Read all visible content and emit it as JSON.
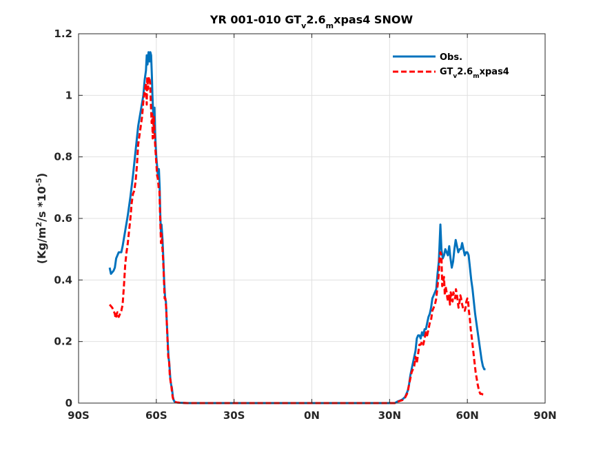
{
  "chart_data": {
    "type": "line",
    "title": {
      "pre": "YR 001-010 GT",
      "sub1": "v",
      "mid": "2.6",
      "sub2": "m",
      "post": "xpas4 SNOW"
    },
    "xlabel": "",
    "ylabel": {
      "pre": "(Kg/m",
      "sup1": "2",
      "mid": "/s *10",
      "sup2": "-5",
      "post": ")"
    },
    "xlim": [
      -90,
      90
    ],
    "ylim": [
      0,
      1.2
    ],
    "x_ticks": [
      -90,
      -60,
      -30,
      0,
      30,
      60,
      90
    ],
    "x_tick_labels": [
      "90S",
      "60S",
      "30S",
      "0N",
      "30N",
      "60N",
      "90N"
    ],
    "y_ticks": [
      0,
      0.2,
      0.4,
      0.6,
      0.8,
      1.0,
      1.2
    ],
    "y_tick_labels": [
      "0",
      "0.2",
      "0.4",
      "0.6",
      "0.8",
      "1",
      "1.2"
    ],
    "grid": true,
    "legend_position": "top-right",
    "series": [
      {
        "name": "Obs.",
        "legend": {
          "text": "Obs."
        },
        "color": "#0072BD",
        "style": "solid",
        "points": [
          [
            -78,
            0.44
          ],
          [
            -77.5,
            0.42
          ],
          [
            -76.5,
            0.43
          ],
          [
            -76,
            0.44
          ],
          [
            -75.5,
            0.47
          ],
          [
            -75,
            0.48
          ],
          [
            -74.5,
            0.49
          ],
          [
            -74,
            0.49
          ],
          [
            -73.5,
            0.49
          ],
          [
            -73,
            0.51
          ],
          [
            -72,
            0.56
          ],
          [
            -71,
            0.61
          ],
          [
            -70,
            0.67
          ],
          [
            -69,
            0.74
          ],
          [
            -68,
            0.82
          ],
          [
            -67,
            0.9
          ],
          [
            -66,
            0.95
          ],
          [
            -65,
            1.0
          ],
          [
            -64.5,
            1.05
          ],
          [
            -64,
            1.08
          ],
          [
            -63.7,
            1.13
          ],
          [
            -63.4,
            1.1
          ],
          [
            -63,
            1.14
          ],
          [
            -62.6,
            1.11
          ],
          [
            -62.3,
            1.14
          ],
          [
            -62,
            1.13
          ],
          [
            -61.7,
            1.06
          ],
          [
            -61.5,
            1.0
          ],
          [
            -61.2,
            0.94
          ],
          [
            -61,
            0.9
          ],
          [
            -60.7,
            0.96
          ],
          [
            -60.5,
            0.88
          ],
          [
            -60,
            0.8
          ],
          [
            -59.5,
            0.75
          ],
          [
            -59.2,
            0.73
          ],
          [
            -59,
            0.76
          ],
          [
            -58.7,
            0.7
          ],
          [
            -58.5,
            0.62
          ],
          [
            -58.2,
            0.55
          ],
          [
            -58,
            0.58
          ],
          [
            -57.6,
            0.53
          ],
          [
            -57.3,
            0.47
          ],
          [
            -57,
            0.4
          ],
          [
            -56.6,
            0.34
          ],
          [
            -56.3,
            0.33
          ],
          [
            -56,
            0.27
          ],
          [
            -55.6,
            0.2
          ],
          [
            -55.3,
            0.15
          ],
          [
            -55,
            0.13
          ],
          [
            -54.6,
            0.08
          ],
          [
            -54.3,
            0.06
          ],
          [
            -54,
            0.05
          ],
          [
            -53.6,
            0.02
          ],
          [
            -53.3,
            0.01
          ],
          [
            -53,
            0.005
          ],
          [
            -52.5,
            0.003
          ],
          [
            -52,
            0.002
          ],
          [
            -51,
            0.001
          ],
          [
            -48,
            0
          ],
          [
            -30,
            0
          ],
          [
            0,
            0
          ],
          [
            30,
            0
          ],
          [
            32,
            0.0
          ],
          [
            33,
            0.005
          ],
          [
            34,
            0.008
          ],
          [
            35,
            0.012
          ],
          [
            36,
            0.02
          ],
          [
            37,
            0.04
          ],
          [
            37.5,
            0.06
          ],
          [
            38,
            0.09
          ],
          [
            38.5,
            0.11
          ],
          [
            39,
            0.13
          ],
          [
            39.5,
            0.15
          ],
          [
            40,
            0.17
          ],
          [
            40.5,
            0.21
          ],
          [
            41,
            0.22
          ],
          [
            41.5,
            0.22
          ],
          [
            42,
            0.21
          ],
          [
            42.5,
            0.23
          ],
          [
            43,
            0.22
          ],
          [
            43.5,
            0.24
          ],
          [
            44,
            0.24
          ],
          [
            44.5,
            0.26
          ],
          [
            45,
            0.28
          ],
          [
            45.5,
            0.29
          ],
          [
            46,
            0.31
          ],
          [
            46.5,
            0.34
          ],
          [
            47,
            0.35
          ],
          [
            47.5,
            0.36
          ],
          [
            48,
            0.37
          ],
          [
            48.5,
            0.42
          ],
          [
            49,
            0.46
          ],
          [
            49.3,
            0.52
          ],
          [
            49.6,
            0.58
          ],
          [
            50,
            0.5
          ],
          [
            50.5,
            0.47
          ],
          [
            51,
            0.48
          ],
          [
            51.5,
            0.5
          ],
          [
            52,
            0.49
          ],
          [
            52.5,
            0.48
          ],
          [
            53,
            0.51
          ],
          [
            53.5,
            0.47
          ],
          [
            54,
            0.44
          ],
          [
            54.5,
            0.46
          ],
          [
            55,
            0.5
          ],
          [
            55.5,
            0.53
          ],
          [
            56,
            0.51
          ],
          [
            56.5,
            0.49
          ],
          [
            57,
            0.5
          ],
          [
            57.5,
            0.5
          ],
          [
            58,
            0.52
          ],
          [
            58.5,
            0.5
          ],
          [
            59,
            0.48
          ],
          [
            59.5,
            0.49
          ],
          [
            60,
            0.49
          ],
          [
            60.5,
            0.48
          ],
          [
            61,
            0.44
          ],
          [
            61.5,
            0.4
          ],
          [
            62,
            0.37
          ],
          [
            62.5,
            0.33
          ],
          [
            63,
            0.29
          ],
          [
            63.5,
            0.26
          ],
          [
            64,
            0.23
          ],
          [
            64.5,
            0.2
          ],
          [
            65,
            0.17
          ],
          [
            65.5,
            0.14
          ],
          [
            66,
            0.12
          ],
          [
            66.5,
            0.11
          ],
          [
            67,
            0.11
          ]
        ]
      },
      {
        "name": "GTv2.6mxpas4",
        "legend": {
          "pre": "GT",
          "sub1": "v",
          "mid": "2.6",
          "sub2": "m",
          "post": "xpas4"
        },
        "color": "#FF0000",
        "style": "dashed",
        "points": [
          [
            -78,
            0.32
          ],
          [
            -77.5,
            0.315
          ],
          [
            -77,
            0.31
          ],
          [
            -76.5,
            0.3
          ],
          [
            -76,
            0.29
          ],
          [
            -75.8,
            0.28
          ],
          [
            -75.5,
            0.275
          ],
          [
            -75.3,
            0.29
          ],
          [
            -75,
            0.295
          ],
          [
            -74.7,
            0.285
          ],
          [
            -74.5,
            0.28
          ],
          [
            -74,
            0.29
          ],
          [
            -73.5,
            0.3
          ],
          [
            -73,
            0.32
          ],
          [
            -72.5,
            0.38
          ],
          [
            -72,
            0.45
          ],
          [
            -71.5,
            0.49
          ],
          [
            -71,
            0.52
          ],
          [
            -70.5,
            0.56
          ],
          [
            -70,
            0.6
          ],
          [
            -69.5,
            0.65
          ],
          [
            -69,
            0.68
          ],
          [
            -68.5,
            0.69
          ],
          [
            -68,
            0.72
          ],
          [
            -67.5,
            0.77
          ],
          [
            -67,
            0.84
          ],
          [
            -66.5,
            0.87
          ],
          [
            -66,
            0.9
          ],
          [
            -65.5,
            0.93
          ],
          [
            -65,
            0.98
          ],
          [
            -64.5,
            1.01
          ],
          [
            -64,
            1.04
          ],
          [
            -63.7,
            0.97
          ],
          [
            -63.5,
            1.06
          ],
          [
            -63.2,
            1.02
          ],
          [
            -63,
            1.05
          ],
          [
            -62.7,
            1.06
          ],
          [
            -62.4,
            1.04
          ],
          [
            -62.1,
            0.97
          ],
          [
            -61.8,
            0.91
          ],
          [
            -61.6,
            0.94
          ],
          [
            -61.4,
            0.86
          ],
          [
            -61.2,
            0.89
          ],
          [
            -61,
            0.93
          ],
          [
            -60.7,
            0.88
          ],
          [
            -60.4,
            0.83
          ],
          [
            -60,
            0.78
          ],
          [
            -59.7,
            0.74
          ],
          [
            -59.4,
            0.73
          ],
          [
            -59.1,
            0.7
          ],
          [
            -58.8,
            0.69
          ],
          [
            -58.5,
            0.6
          ],
          [
            -58.2,
            0.52
          ],
          [
            -58,
            0.55
          ],
          [
            -57.7,
            0.51
          ],
          [
            -57.4,
            0.47
          ],
          [
            -57.1,
            0.41
          ],
          [
            -56.8,
            0.34
          ],
          [
            -56.5,
            0.34
          ],
          [
            -56.2,
            0.31
          ],
          [
            -56,
            0.27
          ],
          [
            -55.7,
            0.21
          ],
          [
            -55.4,
            0.15
          ],
          [
            -55.1,
            0.14
          ],
          [
            -54.8,
            0.09
          ],
          [
            -54.5,
            0.07
          ],
          [
            -54.2,
            0.055
          ],
          [
            -54,
            0.04
          ],
          [
            -53.7,
            0.02
          ],
          [
            -53.4,
            0.01
          ],
          [
            -53,
            0.005
          ],
          [
            -52.5,
            0.003
          ],
          [
            -52,
            0.002
          ],
          [
            -51,
            0.001
          ],
          [
            -48,
            0
          ],
          [
            -30,
            0
          ],
          [
            0,
            0
          ],
          [
            30,
            0
          ],
          [
            32,
            0.0
          ],
          [
            33,
            0.004
          ],
          [
            34,
            0.007
          ],
          [
            35,
            0.01
          ],
          [
            36,
            0.018
          ],
          [
            37,
            0.035
          ],
          [
            37.5,
            0.06
          ],
          [
            38,
            0.08
          ],
          [
            38.5,
            0.1
          ],
          [
            39,
            0.11
          ],
          [
            39.5,
            0.12
          ],
          [
            40,
            0.15
          ],
          [
            40.5,
            0.13
          ],
          [
            41,
            0.16
          ],
          [
            41.5,
            0.19
          ],
          [
            42,
            0.19
          ],
          [
            42.5,
            0.2
          ],
          [
            43,
            0.19
          ],
          [
            43.5,
            0.21
          ],
          [
            44,
            0.23
          ],
          [
            44.5,
            0.22
          ],
          [
            45,
            0.24
          ],
          [
            45.5,
            0.26
          ],
          [
            46,
            0.27
          ],
          [
            46.5,
            0.3
          ],
          [
            47,
            0.31
          ],
          [
            47.5,
            0.32
          ],
          [
            48,
            0.34
          ],
          [
            48.5,
            0.38
          ],
          [
            49,
            0.42
          ],
          [
            49.3,
            0.47
          ],
          [
            49.6,
            0.49
          ],
          [
            50,
            0.48
          ],
          [
            50.3,
            0.38
          ],
          [
            50.6,
            0.39
          ],
          [
            51,
            0.41
          ],
          [
            51.3,
            0.35
          ],
          [
            51.6,
            0.38
          ],
          [
            52,
            0.36
          ],
          [
            52.3,
            0.34
          ],
          [
            52.6,
            0.33
          ],
          [
            53,
            0.35
          ],
          [
            53.3,
            0.32
          ],
          [
            53.6,
            0.36
          ],
          [
            54,
            0.34
          ],
          [
            54.3,
            0.33
          ],
          [
            54.6,
            0.36
          ],
          [
            55,
            0.35
          ],
          [
            55.3,
            0.34
          ],
          [
            55.6,
            0.37
          ],
          [
            56,
            0.35
          ],
          [
            56.3,
            0.33
          ],
          [
            56.6,
            0.31
          ],
          [
            57,
            0.33
          ],
          [
            57.3,
            0.35
          ],
          [
            57.6,
            0.34
          ],
          [
            58,
            0.32
          ],
          [
            58.3,
            0.31
          ],
          [
            58.6,
            0.3
          ],
          [
            59,
            0.3
          ],
          [
            59.3,
            0.31
          ],
          [
            59.6,
            0.33
          ],
          [
            60,
            0.34
          ],
          [
            60.3,
            0.33
          ],
          [
            60.6,
            0.3
          ],
          [
            61,
            0.27
          ],
          [
            61.3,
            0.24
          ],
          [
            61.6,
            0.22
          ],
          [
            62,
            0.19
          ],
          [
            62.4,
            0.16
          ],
          [
            62.8,
            0.13
          ],
          [
            63.2,
            0.1
          ],
          [
            63.6,
            0.08
          ],
          [
            64,
            0.06
          ],
          [
            64.5,
            0.04
          ],
          [
            65,
            0.03
          ],
          [
            65.5,
            0.03
          ],
          [
            66,
            0.028
          ],
          [
            66.5,
            0.027
          ],
          [
            67,
            0.027
          ]
        ]
      }
    ]
  }
}
